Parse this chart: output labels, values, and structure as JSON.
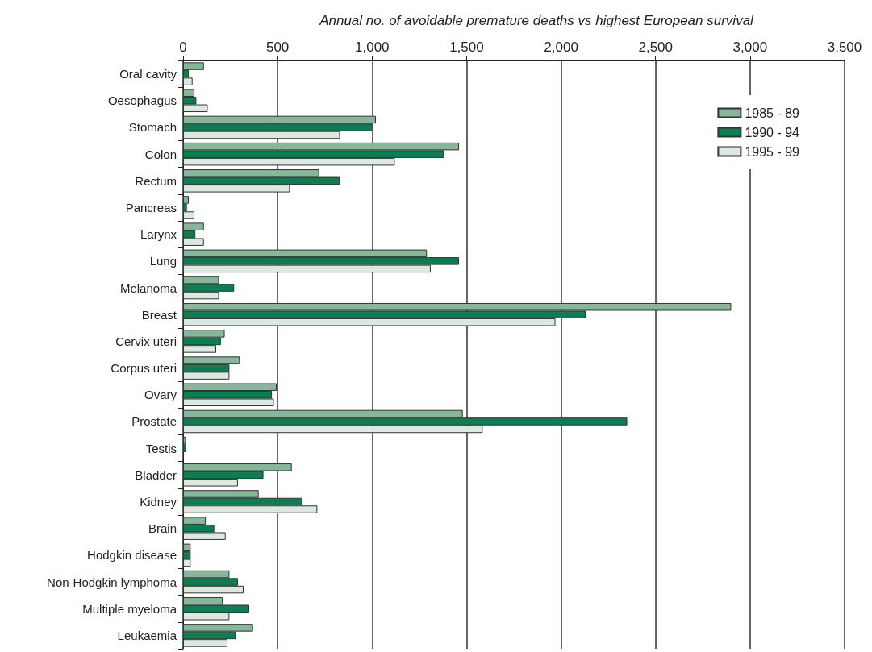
{
  "chart_data": {
    "type": "bar",
    "orientation": "horizontal",
    "title": "Annual no. of avoidable premature deaths vs highest European survival",
    "categories": [
      "Oral cavity",
      "Oesophagus",
      "Stomach",
      "Colon",
      "Rectum",
      "Pancreas",
      "Larynx",
      "Lung",
      "Melanoma",
      "Breast",
      "Cervix uteri",
      "Corpus uteri",
      "Ovary",
      "Prostate",
      "Testis",
      "Bladder",
      "Kidney",
      "Brain",
      "Hodgkin disease",
      "Non-Hodgkin lymphoma",
      "Multiple myeloma",
      "Leukaemia"
    ],
    "series": [
      {
        "name": "1985 - 89",
        "color": "#86b79b",
        "values": [
          110,
          60,
          1020,
          1460,
          720,
          30,
          110,
          1290,
          190,
          2900,
          220,
          300,
          495,
          1480,
          15,
          575,
          400,
          120,
          40,
          245,
          210,
          370
        ]
      },
      {
        "name": "1990 - 94",
        "color": "#0b7f52",
        "values": [
          30,
          70,
          1000,
          1380,
          830,
          20,
          65,
          1460,
          270,
          2130,
          200,
          245,
          470,
          2350,
          15,
          425,
          630,
          165,
          40,
          290,
          350,
          280
        ]
      },
      {
        "name": "1995 - 99",
        "color": "#dce9e3",
        "values": [
          50,
          130,
          830,
          1120,
          565,
          60,
          110,
          1310,
          190,
          1970,
          175,
          245,
          480,
          1585,
          null,
          290,
          710,
          225,
          40,
          320,
          245,
          235
        ]
      }
    ],
    "xlim": [
      0,
      3500
    ],
    "xticks": [
      0,
      {
        "value": 500,
        "label": "500"
      },
      {
        "value": 1000,
        "label": "1,000"
      },
      {
        "value": 1500,
        "label": "1,500"
      },
      {
        "value": 2000,
        "label": "2,000"
      },
      {
        "value": 2500,
        "label": "2,500"
      },
      {
        "value": 3000,
        "label": "3,000"
      },
      {
        "value": 3500,
        "label": "3,500"
      }
    ],
    "grid": "x",
    "legend": "top right"
  }
}
